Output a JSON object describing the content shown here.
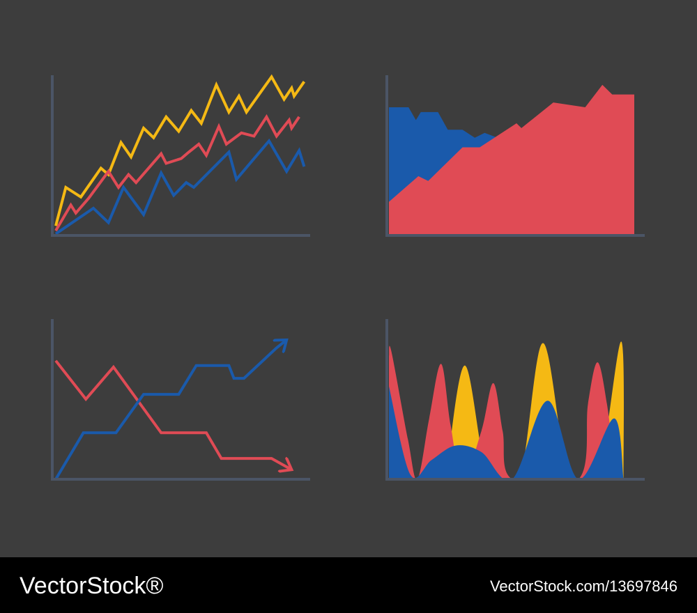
{
  "chart_data": [
    {
      "type": "line",
      "xlim": [
        0,
        100
      ],
      "ylim": [
        0,
        100
      ],
      "series": [
        {
          "color": "#f5b914",
          "x": [
            0,
            4,
            10,
            18,
            21,
            26,
            30,
            35,
            39,
            44,
            49,
            54,
            58,
            64,
            69,
            73,
            76,
            86,
            91,
            94,
            95,
            99
          ],
          "values": [
            6,
            30,
            24,
            42,
            38,
            58,
            49,
            67,
            61,
            74,
            65,
            78,
            70,
            94,
            77,
            87,
            77,
            99,
            85,
            92,
            87,
            96
          ]
        },
        {
          "color": "#e04b55",
          "x": [
            0,
            6,
            8,
            13,
            21,
            25,
            29,
            32,
            42,
            44,
            50,
            53,
            57,
            60,
            65,
            68,
            74,
            79,
            84,
            88,
            93,
            94,
            97
          ],
          "values": [
            3,
            19,
            14,
            23,
            40,
            30,
            38,
            33,
            51,
            45,
            48,
            52,
            57,
            50,
            68,
            57,
            64,
            62,
            74,
            62,
            72,
            67,
            74
          ]
        },
        {
          "color": "#1a5aab",
          "x": [
            0,
            15,
            21,
            27,
            35,
            42,
            47,
            52,
            55,
            69,
            72,
            85,
            92,
            97,
            99
          ],
          "values": [
            1,
            17,
            8,
            30,
            13,
            39,
            25,
            33,
            30,
            52,
            35,
            59,
            40,
            53,
            43
          ]
        }
      ]
    },
    {
      "type": "area",
      "xlim": [
        0,
        100
      ],
      "ylim": [
        0,
        100
      ],
      "series": [
        {
          "color": "#1a5aab",
          "x": [
            0,
            8,
            11,
            13,
            20,
            24,
            30,
            35,
            39,
            46
          ],
          "values": [
            80,
            80,
            72,
            77,
            77,
            66,
            66,
            61,
            64,
            60
          ]
        },
        {
          "color": "#e04b55",
          "x": [
            0,
            12,
            16,
            30,
            37,
            52,
            54,
            67,
            80,
            87,
            91,
            100
          ],
          "values": [
            21,
            37,
            34,
            55,
            55,
            70,
            67,
            83,
            80,
            94,
            88,
            88
          ]
        }
      ]
    },
    {
      "type": "line",
      "xlim": [
        0,
        100
      ],
      "ylim": [
        0,
        100
      ],
      "arrows": true,
      "series": [
        {
          "color": "#e04b55",
          "x": [
            0,
            12,
            23,
            42,
            60,
            66,
            86,
            94
          ],
          "values": [
            74,
            50,
            70,
            29,
            29,
            13,
            13,
            6
          ]
        },
        {
          "color": "#1a5aab",
          "x": [
            0,
            11,
            24,
            35,
            49,
            56,
            69,
            71,
            75,
            88,
            92
          ],
          "values": [
            0,
            29,
            29,
            53,
            53,
            71,
            71,
            63,
            63,
            82,
            87
          ]
        }
      ]
    },
    {
      "type": "area",
      "smooth": true,
      "xlim": [
        0,
        100
      ],
      "ylim": [
        0,
        100
      ],
      "series": [
        {
          "color": "#f5b914",
          "x": [
            24,
            32,
            42,
            55,
            65,
            76,
            88,
            98,
            99
          ],
          "values": [
            0,
            71,
            0,
            0,
            85,
            0,
            0,
            86,
            0
          ]
        },
        {
          "color": "#e04b55",
          "x": [
            0,
            1,
            8,
            12,
            17,
            22,
            26,
            31,
            39,
            44,
            48,
            52,
            80,
            84,
            88,
            92,
            96
          ],
          "values": [
            77,
            80,
            25,
            0,
            38,
            72,
            34,
            0,
            30,
            60,
            30,
            0,
            0,
            47,
            73,
            47,
            0
          ]
        },
        {
          "color": "#1a5aab",
          "x": [
            0,
            9,
            18,
            28,
            39,
            52,
            67,
            80,
            95,
            99
          ],
          "values": [
            58,
            3,
            12,
            21,
            17,
            0,
            49,
            0,
            38,
            0
          ]
        }
      ]
    }
  ],
  "footer": {
    "brand": "VectorStock®",
    "url": "VectorStock.com/13697846"
  }
}
